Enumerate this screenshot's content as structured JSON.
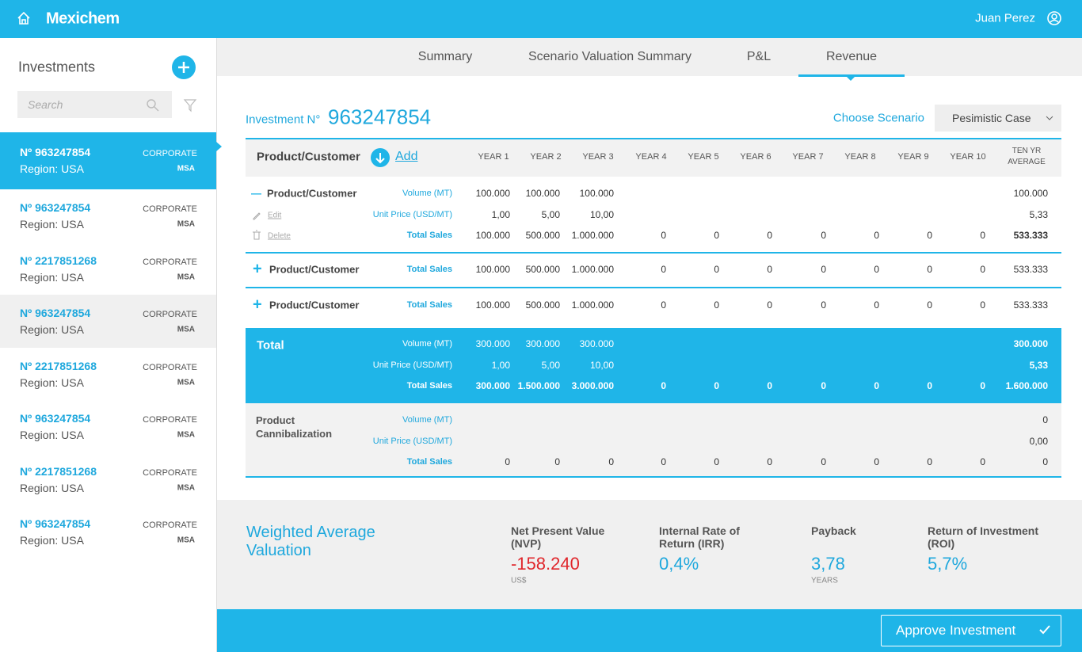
{
  "header": {
    "logo": "Mexichem",
    "user": "Juan Perez"
  },
  "sidebar": {
    "title": "Investments",
    "search_placeholder": "Search",
    "items": [
      {
        "number": "Nº 963247854",
        "type": "CORPORATE",
        "region": "Region: USA",
        "tag": "MSA"
      },
      {
        "number": "Nº 963247854",
        "type": "CORPORATE",
        "region": "Region: USA",
        "tag": "MSA"
      },
      {
        "number": "Nº 2217851268",
        "type": "CORPORATE",
        "region": "Region: USA",
        "tag": "MSA"
      },
      {
        "number": "Nº 963247854",
        "type": "CORPORATE",
        "region": "Region: USA",
        "tag": "MSA"
      },
      {
        "number": "Nº 2217851268",
        "type": "CORPORATE",
        "region": "Region: USA",
        "tag": "MSA"
      },
      {
        "number": "Nº 963247854",
        "type": "CORPORATE",
        "region": "Region: USA",
        "tag": "MSA"
      },
      {
        "number": "Nº 2217851268",
        "type": "CORPORATE",
        "region": "Region: USA",
        "tag": "MSA"
      },
      {
        "number": "Nº 963247854",
        "type": "CORPORATE",
        "region": "Region: USA",
        "tag": "MSA"
      }
    ]
  },
  "tabs": [
    "Summary",
    "Scenario Valuation Summary",
    "P&L",
    "Revenue"
  ],
  "investment": {
    "label": "Investment N°",
    "number": "963247854",
    "choose_label": "Choose Scenario",
    "scenario": "Pesimistic Case"
  },
  "table": {
    "header": {
      "product": "Product/Customer",
      "add": "Add",
      "columns": [
        "YEAR 1",
        "YEAR 2",
        "YEAR 3",
        "YEAR 4",
        "YEAR 5",
        "YEAR 6",
        "YEAR 7",
        "YEAR 8",
        "YEAR 9",
        "YEAR 10",
        "TEN YR AVERAGE"
      ]
    },
    "groups": [
      {
        "name": "Product/Customer",
        "actions": {
          "edit": "Edit",
          "delete": "Delete"
        },
        "rows": [
          {
            "label": "Volume (MT)",
            "cells": [
              "100.000",
              "100.000",
              "100.000",
              null,
              null,
              null,
              null,
              null,
              null,
              null,
              "100.000"
            ]
          },
          {
            "label": "Unit Price (USD/MT)",
            "cells": [
              "1,00",
              "5,00",
              "10,00",
              null,
              null,
              null,
              null,
              null,
              null,
              null,
              "5,33"
            ]
          },
          {
            "label": "Total Sales",
            "cells": [
              "100.000",
              "500.000",
              "1.000.000",
              "0",
              "0",
              "0",
              "0",
              "0",
              "0",
              "0",
              "533.333"
            ]
          }
        ]
      },
      {
        "name": "Product/Customer",
        "rows": [
          {
            "label": "Total Sales",
            "cells": [
              "100.000",
              "500.000",
              "1.000.000",
              "0",
              "0",
              "0",
              "0",
              "0",
              "0",
              "0",
              "533.333"
            ]
          }
        ]
      },
      {
        "name": "Product/Customer",
        "rows": [
          {
            "label": "Total Sales",
            "cells": [
              "100.000",
              "500.000",
              "1.000.000",
              "0",
              "0",
              "0",
              "0",
              "0",
              "0",
              "0",
              "533.333"
            ]
          }
        ]
      }
    ],
    "total": {
      "name": "Total",
      "rows": [
        {
          "label": "Volume (MT)",
          "cells": [
            "300.000",
            "300.000",
            "300.000",
            null,
            null,
            null,
            null,
            null,
            null,
            null,
            "300.000"
          ]
        },
        {
          "label": "Unit Price (USD/MT)",
          "cells": [
            "1,00",
            "5,00",
            "10,00",
            null,
            null,
            null,
            null,
            null,
            null,
            null,
            "5,33"
          ]
        },
        {
          "label": "Total Sales",
          "cells": [
            "300.000",
            "1.500.000",
            "3.000.000",
            "0",
            "0",
            "0",
            "0",
            "0",
            "0",
            "0",
            "1.600.000"
          ]
        }
      ]
    },
    "cannibalization": {
      "name": "Product Cannibalization",
      "rows": [
        {
          "label": "Volume (MT)",
          "cells": [
            null,
            null,
            null,
            null,
            null,
            null,
            null,
            null,
            null,
            null,
            "0"
          ]
        },
        {
          "label": "Unit Price (USD/MT)",
          "cells": [
            null,
            null,
            null,
            null,
            null,
            null,
            null,
            null,
            null,
            null,
            "0,00"
          ]
        },
        {
          "label": "Total Sales",
          "cells": [
            "0",
            "0",
            "0",
            "0",
            "0",
            "0",
            "0",
            "0",
            "0",
            "0",
            "0"
          ]
        }
      ]
    }
  },
  "valuation": {
    "title": "Weighted Average Valuation",
    "metrics": [
      {
        "label": "Net Present Value (NVP)",
        "value": "-158.240",
        "unit": "US$"
      },
      {
        "label": "Internal Rate of Return (IRR)",
        "value": "0,4%"
      },
      {
        "label": "Payback",
        "value": "3,78",
        "unit": "YEARS"
      },
      {
        "label": "Return of Investment (ROI)",
        "value": "5,7%"
      }
    ]
  },
  "button": "Approve Investment"
}
